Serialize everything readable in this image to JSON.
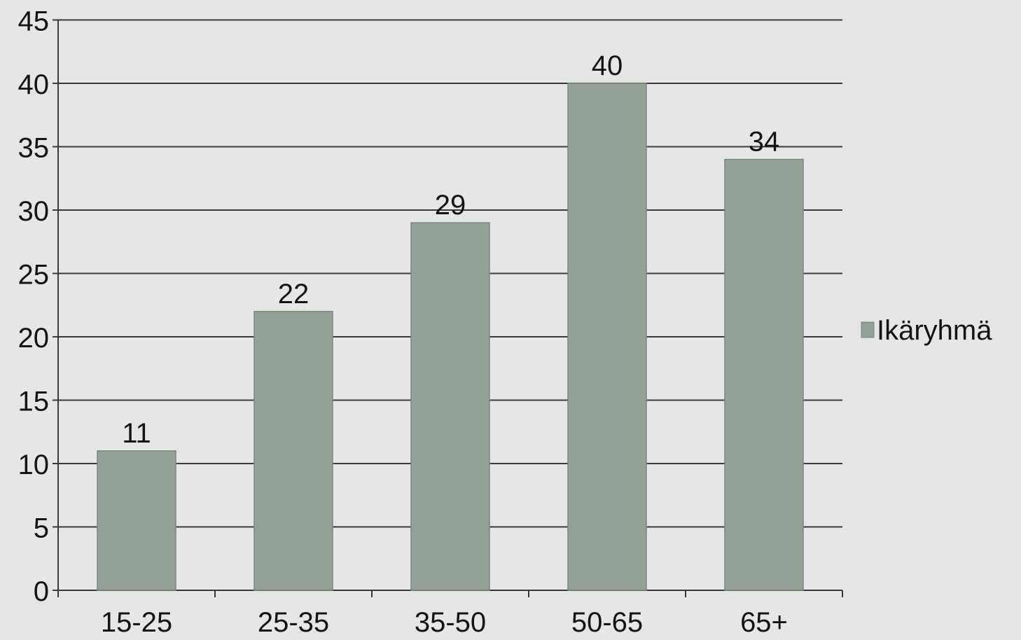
{
  "chart_data": {
    "type": "bar",
    "categories": [
      "15-25",
      "25-35",
      "35-50",
      "50-65",
      "65+"
    ],
    "series": [
      {
        "name": "Ikäryhmä",
        "values": [
          11,
          22,
          29,
          40,
          34
        ]
      }
    ],
    "title": "",
    "xlabel": "",
    "ylabel": "",
    "ylim": [
      0,
      45
    ],
    "yticks": [
      0,
      5,
      10,
      15,
      20,
      25,
      30,
      35,
      40,
      45
    ],
    "data_labels": [
      "11",
      "22",
      "29",
      "40",
      "34"
    ],
    "grid": true,
    "legend_position": "right",
    "colors": {
      "bar": "#93a096",
      "bar_edge": "#7b8780",
      "grid": "#3a3a3a",
      "background": "#e6e6e6"
    }
  }
}
